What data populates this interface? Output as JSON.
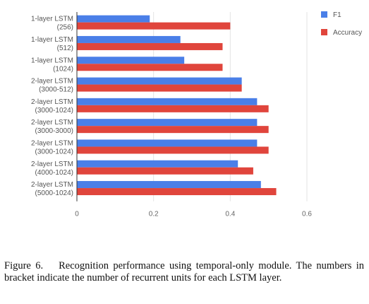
{
  "chart_data": {
    "type": "bar",
    "orientation": "horizontal",
    "categories": [
      [
        "1-layer LSTM",
        "(256)"
      ],
      [
        "1-layer LSTM",
        "(512)"
      ],
      [
        "1-layer LSTM",
        "(1024)"
      ],
      [
        "2-layer LSTM",
        "(3000-512)"
      ],
      [
        "2-layer LSTM",
        "(3000-1024)"
      ],
      [
        "2-layer LSTM",
        "(3000-3000)"
      ],
      [
        "2-layer LSTM",
        "(3000-1024)"
      ],
      [
        "2-layer LSTM",
        "(4000-1024)"
      ],
      [
        "2-layer LSTM",
        "(5000-1024)"
      ]
    ],
    "series": [
      {
        "name": "F1",
        "color": "#4a7fe8",
        "values": [
          0.19,
          0.27,
          0.28,
          0.43,
          0.47,
          0.47,
          0.47,
          0.42,
          0.48
        ]
      },
      {
        "name": "Accuracy",
        "color": "#e0453c",
        "values": [
          0.4,
          0.38,
          0.38,
          0.43,
          0.5,
          0.5,
          0.5,
          0.46,
          0.52
        ]
      }
    ],
    "xlim": [
      0,
      0.6
    ],
    "xticks": [
      "0",
      "0.2",
      "0.4",
      "0.6"
    ],
    "xtick_values": [
      0,
      0.2,
      0.4,
      0.6
    ],
    "grid": true,
    "legend_position": "top-right"
  },
  "caption": {
    "label": "Figure 6.",
    "text": "Recognition performance using temporal-only module. The numbers in bracket indicate the number of recurrent units for each LSTM layer."
  }
}
